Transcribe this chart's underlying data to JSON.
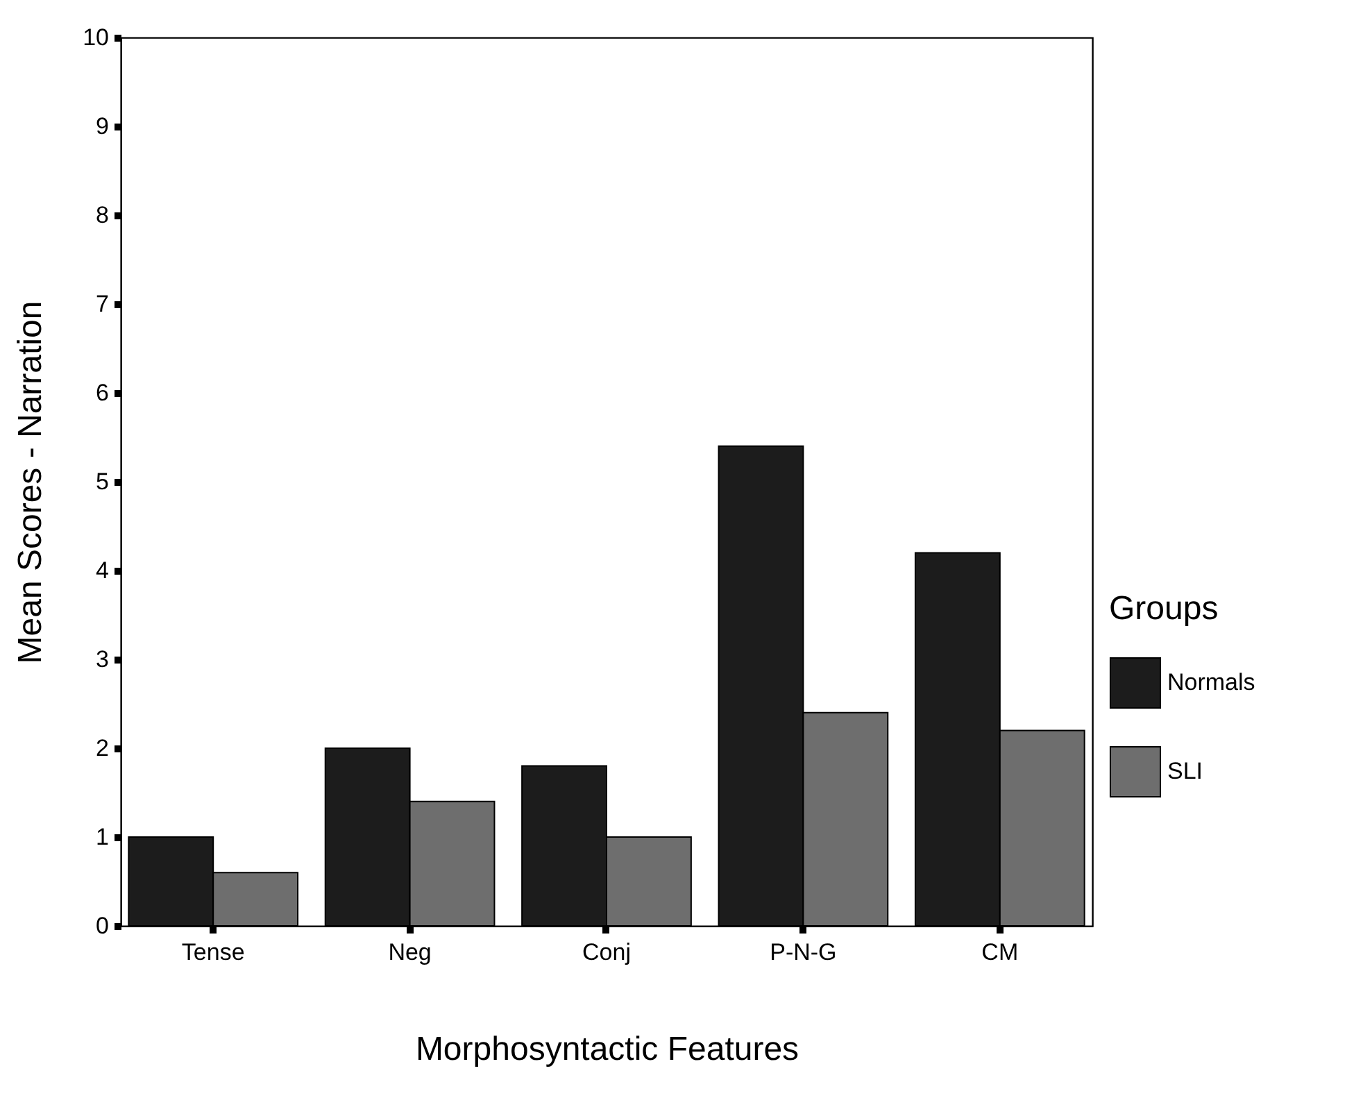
{
  "chart_data": {
    "type": "bar",
    "xlabel": "Morphosyntactic Features",
    "ylabel": "Mean Scores - Narration",
    "legend_title": "Groups",
    "categories": [
      "Tense",
      "Neg",
      "Conj",
      "P-N-G",
      "CM"
    ],
    "series": [
      {
        "name": "Normals",
        "color": "#1c1c1c",
        "values": [
          1.0,
          2.0,
          1.8,
          5.4,
          4.2
        ]
      },
      {
        "name": "SLI",
        "color": "#6e6e6e",
        "values": [
          0.6,
          1.4,
          1.0,
          2.4,
          2.2
        ]
      }
    ],
    "ylim": [
      0,
      10
    ],
    "yticks": [
      0,
      1,
      2,
      3,
      4,
      5,
      6,
      7,
      8,
      9,
      10
    ],
    "grid": false,
    "legend": "right"
  }
}
